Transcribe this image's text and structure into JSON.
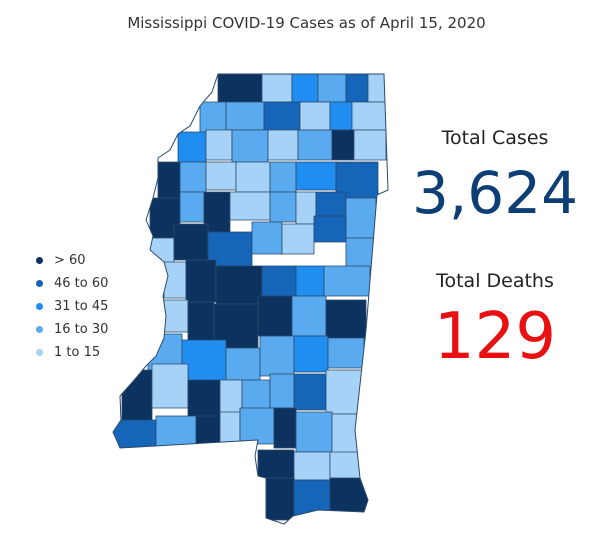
{
  "title": "Mississippi COVID-19 Cases as of April 15, 2020",
  "legend": [
    {
      "label": "> 60",
      "color": "#0c3260"
    },
    {
      "label": "46 to 60",
      "color": "#1565b8"
    },
    {
      "label": "31 to 45",
      "color": "#1f8ef0"
    },
    {
      "label": "16 to 30",
      "color": "#5aaaf0"
    },
    {
      "label": "1 to 15",
      "color": "#a7d2f7"
    }
  ],
  "stats": {
    "cases_label": "Total Cases",
    "cases_value": "3,624",
    "deaths_label": "Total Deaths",
    "deaths_value": "129"
  },
  "colors": {
    "county_border": "#2b4a6b",
    "cases_value": "#0d3f74",
    "deaths_value": "#e81010"
  }
}
